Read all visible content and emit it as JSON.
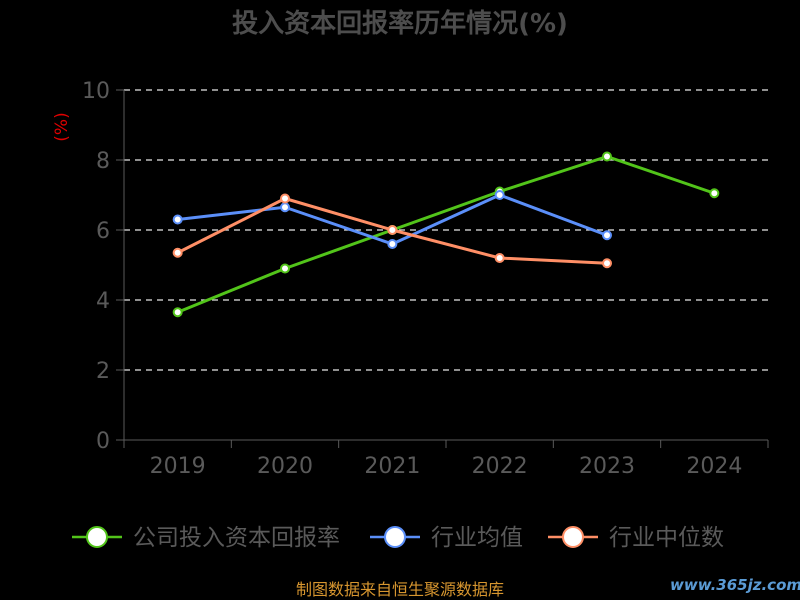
{
  "chart_data": {
    "type": "line",
    "title": "投入资本回报率历年情况(%)",
    "ylabel": "(%)",
    "xlabel": "",
    "categories": [
      "2019",
      "2020",
      "2021",
      "2022",
      "2023",
      "2024"
    ],
    "ylim": [
      0,
      10
    ],
    "yticks": [
      0,
      2,
      4,
      6,
      8,
      10
    ],
    "grid": true,
    "legend_position": "bottom",
    "series": [
      {
        "name": "公司投入资本回报率",
        "color": "#52c41a",
        "values": [
          3.65,
          4.9,
          6.0,
          7.1,
          8.1,
          7.05
        ]
      },
      {
        "name": "行业均值",
        "color": "#5b8ff9",
        "values": [
          6.3,
          6.65,
          5.6,
          7.0,
          5.85,
          null
        ]
      },
      {
        "name": "行业中位数",
        "color": "#ff8f66",
        "values": [
          5.35,
          6.9,
          6.0,
          5.2,
          5.05,
          null
        ]
      }
    ]
  },
  "footer": {
    "source": "制图数据来自恒生聚源数据库",
    "watermark": "www.365jz.com"
  }
}
